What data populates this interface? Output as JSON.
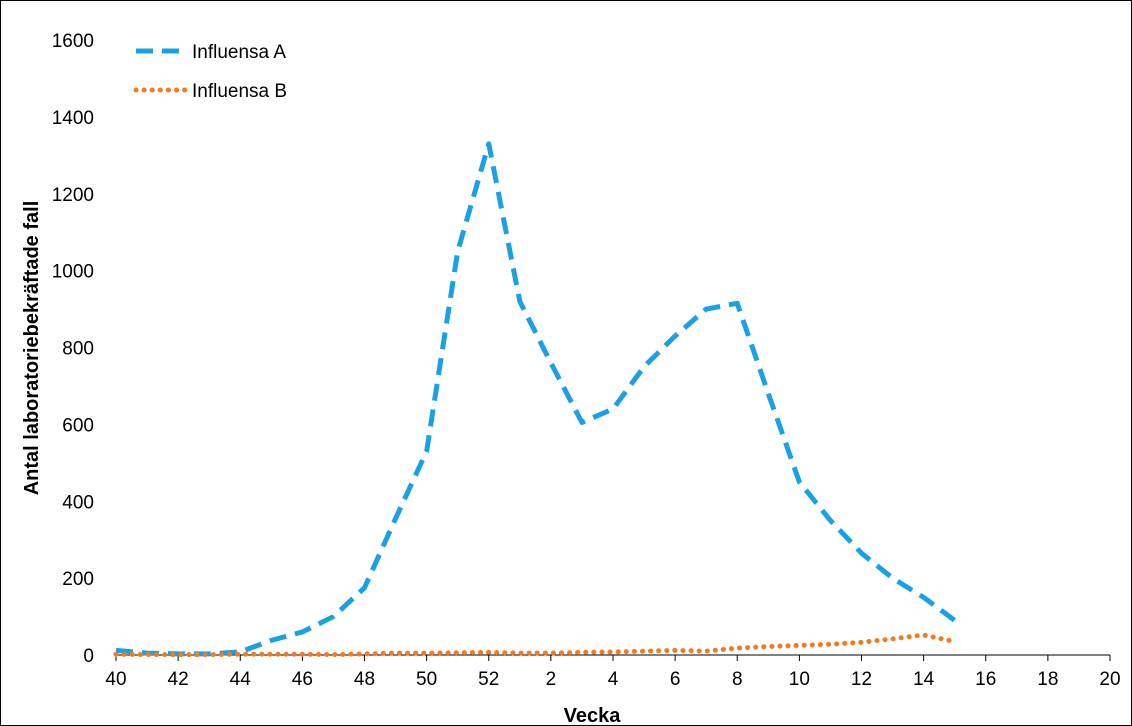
{
  "chart_data": {
    "type": "line",
    "title": "",
    "xlabel": "Vecka",
    "ylabel": "Antal laboratoriebekräftade fall",
    "ylim": [
      0,
      1600
    ],
    "y_ticks": [
      "0",
      "200",
      "400",
      "600",
      "800",
      "1000",
      "1200",
      "1400",
      "1600"
    ],
    "x_ticks": [
      "40",
      "42",
      "44",
      "46",
      "48",
      "50",
      "52",
      "2",
      "4",
      "6",
      "8",
      "10",
      "12",
      "14",
      "16",
      "18",
      "20"
    ],
    "weeks": [
      "40",
      "41",
      "42",
      "43",
      "44",
      "45",
      "46",
      "47",
      "48",
      "49",
      "50",
      "51",
      "52",
      "1",
      "2",
      "3",
      "4",
      "5",
      "6",
      "7",
      "8",
      "9",
      "10",
      "11",
      "12",
      "13",
      "14",
      "15"
    ],
    "grid": false,
    "legend_position": "top-left",
    "series": [
      {
        "name": "Influensa A",
        "color": "#1BA1E2",
        "style": "dashed",
        "values": [
          12,
          5,
          3,
          3,
          8,
          38,
          60,
          100,
          175,
          355,
          530,
          1050,
          1330,
          920,
          760,
          605,
          640,
          750,
          830,
          900,
          915,
          680,
          450,
          350,
          265,
          200,
          150,
          90
        ]
      },
      {
        "name": "Influensa B",
        "color": "#F47A20",
        "style": "dotted",
        "values": [
          2,
          1,
          1,
          1,
          2,
          2,
          2,
          1,
          3,
          5,
          5,
          6,
          7,
          5,
          5,
          7,
          8,
          10,
          12,
          10,
          18,
          22,
          25,
          28,
          33,
          42,
          52,
          35
        ]
      }
    ]
  }
}
